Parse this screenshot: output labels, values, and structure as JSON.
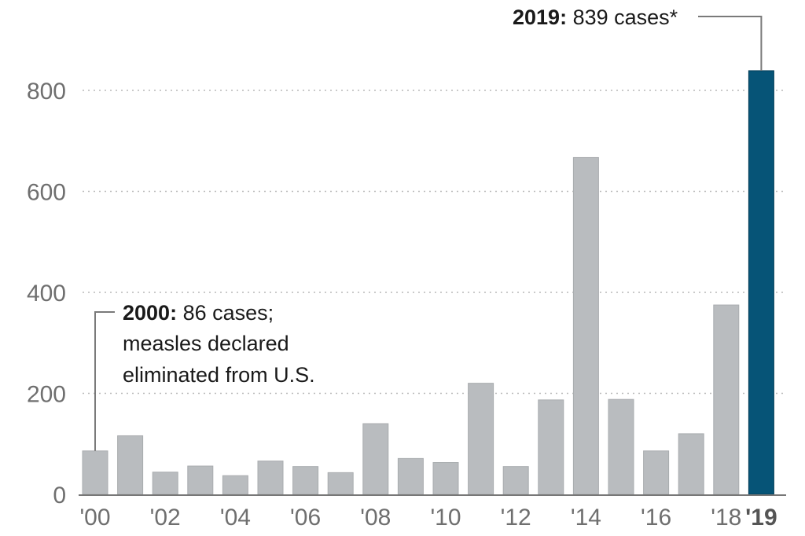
{
  "chart_data": {
    "type": "bar",
    "title": "",
    "xlabel": "",
    "ylabel": "",
    "ylim": [
      0,
      900
    ],
    "yticks": [
      0,
      200,
      400,
      600,
      800
    ],
    "grid": true,
    "categories": [
      "2000",
      "2001",
      "2002",
      "2003",
      "2004",
      "2005",
      "2006",
      "2007",
      "2008",
      "2009",
      "2010",
      "2011",
      "2012",
      "2013",
      "2014",
      "2015",
      "2016",
      "2017",
      "2018",
      "2019"
    ],
    "x_tick_labels": [
      "'00",
      "",
      "'02",
      "",
      "'04",
      "",
      "'06",
      "",
      "'08",
      "",
      "'10",
      "",
      "'12",
      "",
      "'14",
      "",
      "'16",
      "",
      "'18",
      "'19"
    ],
    "values": [
      86,
      116,
      44,
      56,
      37,
      66,
      55,
      43,
      140,
      71,
      63,
      220,
      55,
      187,
      667,
      188,
      86,
      120,
      375,
      839
    ],
    "highlight_index": 19,
    "colors": {
      "default": "#b9bcbf",
      "highlight": "#065477"
    },
    "annotations": [
      {
        "target": "2000",
        "bold": "2000:",
        "lines": [
          "86 cases;",
          "measles declared",
          "eliminated from U.S."
        ]
      },
      {
        "target": "2019",
        "bold": "2019:",
        "lines": [
          "839 cases*"
        ]
      }
    ]
  }
}
